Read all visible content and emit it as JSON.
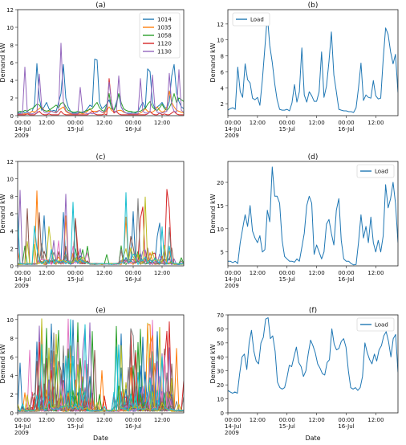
{
  "figure": {
    "colors": {
      "1014": "#1f77b4",
      "1035": "#ff7f0e",
      "1058": "#2ca02c",
      "1120": "#d62728",
      "1130": "#9467bd",
      "load": "#1f77b4"
    },
    "bg_palette": [
      "#1f77b4",
      "#ff7f0e",
      "#2ca02c",
      "#d62728",
      "#9467bd",
      "#8c564b",
      "#e377c2",
      "#7f7f7f",
      "#bcbd22",
      "#17becf"
    ]
  },
  "chart_data": [
    {
      "id": "a",
      "type": "line",
      "title": "(a)",
      "xlabel": "",
      "ylabel": "Demand kW",
      "ylim": [
        0,
        12
      ],
      "yticks": [
        0,
        2,
        4,
        6,
        8,
        10,
        12
      ],
      "xlim": [
        0,
        69
      ],
      "xticks": [
        {
          "x": 0,
          "lines": [
            "00:00",
            "14-Jul",
            "2009"
          ]
        },
        {
          "x": 12,
          "lines": [
            "12:00"
          ]
        },
        {
          "x": 24,
          "lines": [
            "00:00",
            "15-Jul"
          ]
        },
        {
          "x": 36,
          "lines": [
            "12:00"
          ]
        },
        {
          "x": 48,
          "lines": [
            "00:00",
            "16-Jul"
          ]
        },
        {
          "x": 60,
          "lines": [
            "12:00"
          ]
        }
      ],
      "legend": {
        "placement": "top-right",
        "entries": [
          "1014",
          "1035",
          "1058",
          "1120",
          "1130"
        ]
      },
      "series": [
        {
          "name": "1014",
          "color_key": "1014",
          "values": [
            0.3,
            0.3,
            0.5,
            0.3,
            0.4,
            0.3,
            0.5,
            1.2,
            5.9,
            2,
            0.6,
            1,
            1.5,
            0.8,
            0.5,
            0.6,
            0.5,
            1.5,
            2.5,
            5.8,
            2,
            1,
            0.5,
            0.3,
            0.3,
            0.3,
            0.4,
            0.3,
            0.5,
            0.8,
            1.2,
            1,
            6.4,
            6.3,
            1.5,
            0.8,
            1,
            1.3,
            1.8,
            0.9,
            0.6,
            1.5,
            2.5,
            1,
            0.5,
            0.3,
            0.3,
            0.3,
            0.4,
            0.3,
            0.5,
            1,
            1.5,
            0.8,
            5.3,
            5,
            1.5,
            0.8,
            1,
            1.2,
            1.5,
            1,
            0.8,
            1.6,
            4.5,
            5.8,
            2.6,
            1.6,
            1,
            0.8
          ]
        },
        {
          "name": "1035",
          "color_key": "1035",
          "values": [
            0.2,
            0.2,
            0.2,
            0.2,
            0.2,
            0.3,
            0.5,
            0.4,
            0.6,
            0.8,
            1,
            0.6,
            0.5,
            0.5,
            0.5,
            0.4,
            0.4,
            0.6,
            0.8,
            1,
            0.5,
            0.3,
            0.2,
            0.2,
            0.2,
            0.2,
            0.3,
            0.2,
            0.3,
            0.5,
            0.8,
            0.5,
            0.5,
            0.5,
            0.6,
            0.4,
            0.3,
            0.6,
            1,
            0.6,
            0.4,
            0.5,
            0.6,
            0.6,
            0.4,
            0.3,
            0.2,
            0.2,
            0.2,
            0.2,
            0.2,
            0.3,
            0.5,
            0.8,
            0.5,
            0.4,
            0.4,
            0.6,
            1,
            0.6,
            0.4,
            0.5,
            1,
            2.8,
            1.5,
            1,
            0.6,
            0.5,
            0.4,
            0.3
          ]
        },
        {
          "name": "1058",
          "color_key": "1058",
          "values": [
            0.4,
            0.5,
            0.4,
            0.6,
            0.5,
            0.7,
            0.8,
            1,
            1.3,
            1.2,
            0.8,
            0.6,
            0.5,
            0.6,
            0.8,
            1,
            1.2,
            0.9,
            1.4,
            1.5,
            1,
            0.6,
            0.5,
            0.4,
            0.4,
            0.5,
            0.4,
            0.4,
            0.5,
            0.6,
            0.7,
            0.8,
            1.2,
            1.5,
            0.9,
            0.6,
            0.5,
            1.2,
            2.5,
            0.8,
            0.6,
            1.2,
            2.5,
            1.5,
            0.8,
            0.6,
            0.5,
            0.5,
            0.4,
            0.4,
            0.5,
            0.5,
            0.7,
            0.8,
            1.3,
            1.6,
            1,
            0.7,
            0.6,
            0.9,
            1.3,
            0.8,
            0.6,
            0.9,
            1.5,
            2.5,
            1.5,
            2,
            1.8,
            1.6
          ]
        },
        {
          "name": "1120",
          "color_key": "1120",
          "values": [
            0.1,
            0.1,
            0.1,
            0.1,
            0.2,
            0.1,
            0.1,
            0.1,
            0.3,
            0.5,
            0.2,
            0.1,
            0.1,
            0.2,
            0.1,
            0.1,
            0.1,
            0.1,
            0.5,
            0.2,
            0.1,
            0.1,
            0.1,
            0.1,
            0.1,
            0.1,
            0.1,
            0.1,
            0.1,
            0.1,
            0.3,
            0.5,
            0.2,
            0.1,
            0.1,
            0.1,
            0.2,
            0.1,
            4.2,
            1.5,
            0.3,
            0.5,
            0.2,
            0.1,
            0.1,
            0.1,
            0.1,
            0.1,
            0.1,
            0.1,
            0.1,
            0.1,
            0.1,
            0.1,
            0.2,
            0.5,
            0.2,
            0.1,
            0.1,
            0.3,
            0.1,
            0.2,
            0.1,
            0.1,
            0.3,
            0.5,
            0.2,
            0.1,
            0.1,
            0.1
          ]
        },
        {
          "name": "1130",
          "color_key": "1130",
          "values": [
            0.2,
            0.2,
            0.2,
            5.5,
            0.5,
            0.2,
            0.2,
            0.3,
            0.3,
            4.7,
            1,
            0.4,
            0.3,
            0.3,
            0.5,
            0.4,
            0.3,
            0.6,
            8.2,
            1.5,
            0.6,
            0.4,
            0.3,
            0.2,
            0.2,
            0.2,
            3.2,
            0.5,
            0.3,
            0.2,
            0.3,
            0.2,
            0.3,
            0.4,
            0.6,
            0.4,
            0.4,
            0.8,
            3.8,
            1.5,
            0.5,
            0.4,
            4.5,
            1,
            0.5,
            0.3,
            0.2,
            0.2,
            0.2,
            0.2,
            0.2,
            4.2,
            0.5,
            0.3,
            0.3,
            0.4,
            4.6,
            1,
            0.4,
            0.3,
            0.3,
            0.4,
            0.5,
            4.8,
            1.2,
            0.5,
            0.4,
            5.2,
            0.6,
            0.4
          ]
        }
      ]
    },
    {
      "id": "b",
      "type": "line",
      "title": "(b)",
      "xlabel": "",
      "ylabel": "Demand kW",
      "ylim": [
        0.5,
        13.8
      ],
      "yticks": [
        2,
        4,
        6,
        8,
        10,
        12
      ],
      "xlim": [
        0,
        69
      ],
      "xticks": [
        {
          "x": 0,
          "lines": [
            "00:00",
            "14-Jul",
            "2009"
          ]
        },
        {
          "x": 12,
          "lines": [
            "12:00"
          ]
        },
        {
          "x": 24,
          "lines": [
            "00:00",
            "15-Jul"
          ]
        },
        {
          "x": 36,
          "lines": [
            "12:00"
          ]
        },
        {
          "x": 48,
          "lines": [
            "00:00",
            "16-Jul"
          ]
        },
        {
          "x": 60,
          "lines": [
            "12:00"
          ]
        }
      ],
      "legend": {
        "placement": "top-left",
        "entries": [
          "Load"
        ]
      },
      "series": [
        {
          "name": "Load",
          "color_key": "load",
          "values": [
            1.2,
            1.4,
            1.5,
            1.3,
            6.6,
            3.5,
            2.8,
            7,
            5,
            4.6,
            2.7,
            2.5,
            2.8,
            1.8,
            5,
            9,
            13.1,
            9.3,
            7.2,
            4.5,
            2.5,
            1.3,
            1.2,
            1.2,
            1.3,
            1.1,
            2.1,
            4.4,
            2.2,
            3.5,
            9,
            3.1,
            2.2,
            3.5,
            3,
            2.3,
            2.3,
            3.5,
            8.5,
            2.8,
            4.2,
            7.3,
            11,
            5.6,
            3.5,
            1.3,
            1.2,
            1.1,
            1.1,
            1,
            1,
            0.9,
            1.5,
            4,
            7.1,
            2.4,
            3.1,
            2.8,
            2.7,
            4.9,
            3,
            2.6,
            2.7,
            7.6,
            11.5,
            10.7,
            8.5,
            7,
            8.2,
            3.4
          ]
        }
      ]
    },
    {
      "id": "c",
      "type": "line",
      "title": "(c)",
      "xlabel": "",
      "ylabel": "Demand kW",
      "ylim": [
        0,
        12
      ],
      "yticks": [
        0,
        2,
        4,
        6,
        8,
        10,
        12
      ],
      "xlim": [
        0,
        69
      ],
      "xticks": [
        {
          "x": 0,
          "lines": [
            "00:00",
            "14-Jul",
            "2009"
          ]
        },
        {
          "x": 12,
          "lines": [
            "12:00"
          ]
        },
        {
          "x": 24,
          "lines": [
            "00:00",
            "15-Jul"
          ]
        },
        {
          "x": 36,
          "lines": [
            "12:00"
          ]
        },
        {
          "x": 48,
          "lines": [
            "00:00",
            "16-Jul"
          ]
        },
        {
          "x": 60,
          "lines": [
            "12:00"
          ]
        }
      ],
      "series_count": 10,
      "seed": 7
    },
    {
      "id": "d",
      "type": "line",
      "title": "(d)",
      "xlabel": "",
      "ylabel": "Demand kW",
      "ylim": [
        2,
        24.5
      ],
      "yticks": [
        5,
        10,
        15,
        20
      ],
      "xlim": [
        0,
        69
      ],
      "xticks": [
        {
          "x": 0,
          "lines": [
            "00:00",
            "14-Jul",
            "2009"
          ]
        },
        {
          "x": 12,
          "lines": [
            "12:00"
          ]
        },
        {
          "x": 24,
          "lines": [
            "00:00",
            "15-Jul"
          ]
        },
        {
          "x": 36,
          "lines": [
            "12:00"
          ]
        },
        {
          "x": 48,
          "lines": [
            "00:00",
            "16-Jul"
          ]
        },
        {
          "x": 60,
          "lines": [
            "12:00"
          ]
        }
      ],
      "legend": {
        "placement": "top-right",
        "entries": [
          "Load"
        ]
      },
      "series": [
        {
          "name": "Load",
          "color_key": "load",
          "values": [
            3,
            3,
            2.7,
            3,
            2.5,
            7,
            10,
            13,
            10.5,
            15,
            9.5,
            8,
            7,
            8.5,
            5,
            5.5,
            14,
            11.5,
            23.3,
            17,
            17,
            15.5,
            7.5,
            4,
            3.5,
            3,
            3,
            2.8,
            3.5,
            3,
            6,
            9,
            15,
            17,
            15.5,
            4.5,
            6.5,
            5,
            3.5,
            5,
            11,
            12,
            9,
            6.5,
            14,
            16.5,
            7.5,
            3.5,
            3,
            3,
            2.5,
            2.2,
            2.3,
            7,
            13,
            8,
            10.5,
            7,
            12.5,
            7,
            5,
            7.5,
            5,
            8.5,
            19.5,
            14.5,
            16.5,
            20,
            15.5,
            7
          ]
        }
      ]
    },
    {
      "id": "e",
      "type": "line",
      "title": "(e)",
      "xlabel": "Date",
      "ylabel": "Demand kW",
      "ylim": [
        0,
        10.5
      ],
      "yticks": [
        0,
        2,
        4,
        6,
        8,
        10
      ],
      "xlim": [
        0,
        69
      ],
      "xticks": [
        {
          "x": 0,
          "lines": [
            "00:00",
            "14-Jul",
            "2009"
          ]
        },
        {
          "x": 12,
          "lines": [
            "12:00"
          ]
        },
        {
          "x": 24,
          "lines": [
            "00:00",
            "15-Jul"
          ]
        },
        {
          "x": 36,
          "lines": [
            "12:00"
          ]
        },
        {
          "x": 48,
          "lines": [
            "00:00",
            "16-Jul"
          ]
        },
        {
          "x": 60,
          "lines": [
            "12:00"
          ]
        }
      ],
      "series_count": 40,
      "seed": 13
    },
    {
      "id": "f",
      "type": "line",
      "title": "(f)",
      "xlabel": "Date",
      "ylabel": "Demand kW",
      "ylim": [
        0,
        70
      ],
      "yticks": [
        0,
        10,
        20,
        30,
        40,
        50,
        60,
        70
      ],
      "xlim": [
        0,
        69
      ],
      "xticks": [
        {
          "x": 0,
          "lines": [
            "00:00",
            "14-Jul",
            "2009"
          ]
        },
        {
          "x": 12,
          "lines": [
            "12:00"
          ]
        },
        {
          "x": 24,
          "lines": [
            "00:00",
            "15-Jul"
          ]
        },
        {
          "x": 36,
          "lines": [
            "12:00"
          ]
        },
        {
          "x": 48,
          "lines": [
            "00:00",
            "16-Jul"
          ]
        },
        {
          "x": 60,
          "lines": [
            "12:00"
          ]
        }
      ],
      "legend": {
        "placement": "top-right",
        "entries": [
          "Load"
        ]
      },
      "series": [
        {
          "name": "Load",
          "color_key": "load",
          "values": [
            16,
            15,
            14,
            15,
            14,
            28,
            40,
            42,
            31,
            50,
            59,
            44,
            37,
            35,
            50,
            54,
            67,
            68,
            53,
            55,
            44,
            22,
            18,
            17,
            18,
            25,
            34,
            33,
            40,
            47,
            36,
            33,
            26,
            30,
            42,
            52,
            48,
            43,
            35,
            32,
            28,
            27,
            36,
            38,
            60,
            49,
            45,
            46,
            51,
            53,
            47,
            30,
            18,
            17,
            18,
            16,
            18,
            26,
            50,
            43,
            38,
            35,
            42,
            37,
            45,
            48,
            55,
            58,
            51,
            40,
            53,
            56,
            29
          ]
        }
      ]
    }
  ]
}
